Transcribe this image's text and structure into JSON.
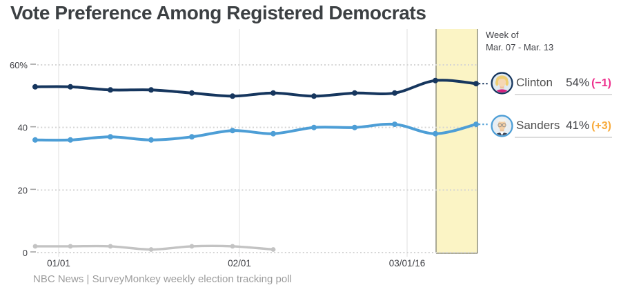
{
  "title": "Vote Preference Among Registered Democrats",
  "source": "NBC News | SurveyMonkey weekly election tracking poll",
  "annotation": {
    "line1": "Week of",
    "line2": "Mar. 07 - Mar. 13"
  },
  "legend": [
    {
      "name": "Clinton",
      "value": "54%",
      "change": "(−1)",
      "change_color": "#ee2f8d",
      "ring_color": "#16365e"
    },
    {
      "name": "Sanders",
      "value": "41%",
      "change": "(+3)",
      "change_color": "#f8ab3c",
      "ring_color": "#4d9ed6"
    }
  ],
  "chart_data": {
    "type": "line",
    "title": "Vote Preference Among Registered Democrats",
    "xlabel": "",
    "ylabel": "",
    "ylim": [
      0,
      65
    ],
    "y_tick_values": [
      60,
      40,
      20,
      0
    ],
    "y_tick_labels": [
      "60%",
      "40",
      "20",
      "0"
    ],
    "x_tick_labels": [
      "01/01",
      "02/01",
      "03/01/16"
    ],
    "grid": "dotted horizontal gridlines, solid light vertical gridlines at month ticks",
    "legend_position": "right, with candidate avatars and latest value + weekly change",
    "highlight_band": "final week (Mar. 07 - Mar. 13) shaded pale yellow",
    "series": [
      {
        "name": "Clinton",
        "color": "#16365e",
        "values": [
          53,
          53,
          52,
          52,
          51,
          50,
          51,
          50,
          51,
          51,
          55,
          54
        ]
      },
      {
        "name": "Sanders",
        "color": "#4d9ed6",
        "values": [
          36,
          36,
          37,
          36,
          37,
          39,
          38,
          40,
          40,
          41,
          38,
          41
        ]
      },
      {
        "name": "",
        "color": "#c3c3c3",
        "values": [
          2,
          2,
          2,
          1,
          2,
          2,
          1
        ]
      }
    ]
  },
  "colors": {
    "highlight_band_fill": "#fbf4c5",
    "highlight_band_border": "#90907f",
    "gridline_dotted": "#d4d4d4",
    "gridline_vertical": "#e4e4e4",
    "axis_text": "#3f4045",
    "underline": "#dcdcdc"
  }
}
